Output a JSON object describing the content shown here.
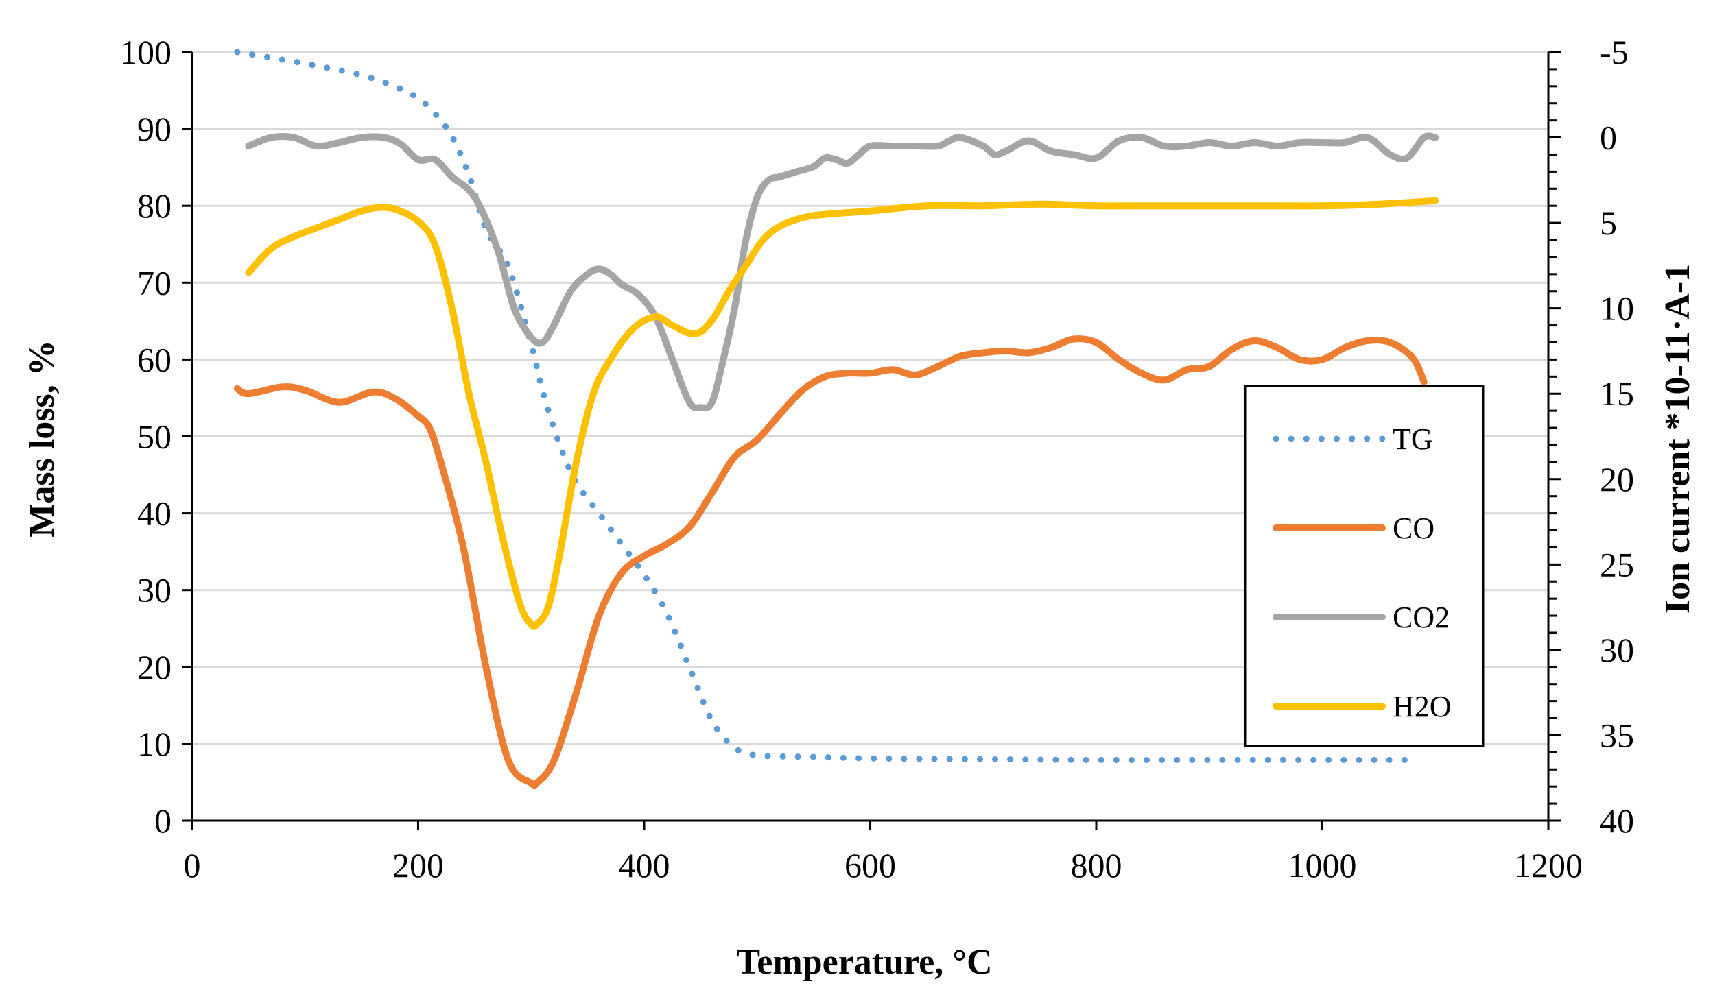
{
  "chart_data": {
    "type": "line",
    "title": "",
    "xlabel": "Temperature, °C",
    "ylabel": "Mass loss, %",
    "y2label": "Ion current *10-11·A-1",
    "xlim": [
      0,
      1200
    ],
    "ylim": [
      0,
      100
    ],
    "y2lim": [
      40,
      -5
    ],
    "y2_reversed": true,
    "grid": true,
    "legend_position": "right",
    "x_ticks": [
      "0",
      "200",
      "400",
      "600",
      "800",
      "1000",
      "1200"
    ],
    "y_ticks": [
      "0",
      "10",
      "20",
      "30",
      "40",
      "50",
      "60",
      "70",
      "80",
      "90",
      "100"
    ],
    "y2_ticks": [
      "-5",
      "0",
      "5",
      "10",
      "15",
      "20",
      "25",
      "30",
      "35",
      "40"
    ],
    "colors": {
      "TG": "#5B9BD5",
      "CO": "#ED7D31",
      "CO2": "#A5A5A5",
      "H2O": "#FFC000",
      "grid": "#D9D9D9",
      "axis": "#000000"
    },
    "series": [
      {
        "name": "TG",
        "axis": "left",
        "style": "dotted",
        "x": [
          40,
          100,
          150,
          180,
          200,
          215,
          230,
          245,
          260,
          280,
          300,
          310,
          325,
          340,
          360,
          380,
          400,
          420,
          440,
          460,
          480,
          500,
          550,
          600,
          700,
          800,
          900,
          1000,
          1085
        ],
        "y": [
          100,
          98.5,
          97,
          95.5,
          94,
          92,
          89,
          84,
          77,
          72,
          62,
          56,
          49,
          44,
          40,
          36,
          32,
          27,
          20,
          13,
          9.5,
          8.5,
          8.3,
          8.1,
          8.0,
          7.9,
          7.9,
          7.9,
          7.9
        ]
      },
      {
        "name": "CO",
        "axis": "right",
        "style": "solid",
        "x": [
          40,
          50,
          80,
          100,
          130,
          160,
          180,
          200,
          210,
          220,
          240,
          260,
          280,
          300,
          305,
          320,
          340,
          360,
          380,
          400,
          420,
          440,
          460,
          480,
          500,
          520,
          540,
          560,
          580,
          600,
          620,
          640,
          660,
          680,
          700,
          720,
          740,
          760,
          780,
          800,
          820,
          840,
          860,
          880,
          900,
          920,
          940,
          960,
          980,
          1000,
          1020,
          1040,
          1060,
          1080,
          1090
        ],
        "y": [
          14.7,
          15.0,
          14.6,
          14.8,
          15.5,
          14.9,
          15.3,
          16.3,
          17.0,
          19.0,
          24.0,
          31.0,
          36.5,
          37.8,
          37.8,
          36.5,
          32.5,
          28.0,
          25.5,
          24.5,
          23.8,
          22.8,
          20.8,
          18.7,
          17.7,
          16.2,
          14.8,
          14.0,
          13.8,
          13.8,
          13.6,
          13.9,
          13.4,
          12.8,
          12.6,
          12.5,
          12.6,
          12.3,
          11.8,
          12.0,
          13.0,
          13.8,
          14.2,
          13.6,
          13.4,
          12.4,
          11.9,
          12.3,
          13.0,
          13.0,
          12.3,
          11.9,
          12.0,
          12.9,
          14.3
        ]
      },
      {
        "name": "CO2",
        "axis": "right",
        "style": "solid",
        "x": [
          50,
          70,
          90,
          110,
          130,
          150,
          170,
          185,
          200,
          215,
          230,
          250,
          270,
          285,
          300,
          310,
          320,
          335,
          350,
          360,
          370,
          380,
          395,
          410,
          425,
          440,
          450,
          460,
          470,
          480,
          490,
          500,
          510,
          520,
          535,
          550,
          560,
          570,
          580,
          590,
          600,
          620,
          640,
          660,
          670,
          680,
          700,
          710,
          720,
          740,
          760,
          780,
          800,
          820,
          840,
          860,
          880,
          900,
          920,
          940,
          960,
          980,
          1000,
          1020,
          1040,
          1060,
          1075,
          1090,
          1100
        ],
        "y": [
          0.5,
          0.0,
          0.0,
          0.5,
          0.3,
          0.0,
          0.0,
          0.4,
          1.3,
          1.3,
          2.3,
          3.5,
          6.5,
          10.0,
          11.7,
          12.0,
          11.0,
          9.0,
          8.0,
          7.7,
          8.0,
          8.6,
          9.2,
          10.5,
          13.0,
          15.5,
          15.8,
          15.5,
          13.0,
          10.0,
          6.0,
          3.5,
          2.5,
          2.3,
          2.0,
          1.7,
          1.2,
          1.3,
          1.5,
          1.0,
          0.5,
          0.5,
          0.5,
          0.5,
          0.2,
          0.0,
          0.5,
          1.0,
          0.8,
          0.2,
          0.8,
          1.0,
          1.2,
          0.2,
          0.0,
          0.5,
          0.5,
          0.3,
          0.5,
          0.3,
          0.5,
          0.3,
          0.3,
          0.3,
          0.0,
          1.0,
          1.2,
          0.0,
          0.0
        ]
      },
      {
        "name": "H2O",
        "axis": "right",
        "style": "solid",
        "x": [
          50,
          70,
          90,
          110,
          130,
          150,
          165,
          180,
          200,
          215,
          230,
          245,
          260,
          275,
          290,
          300,
          305,
          315,
          325,
          340,
          355,
          370,
          390,
          410,
          425,
          445,
          460,
          475,
          490,
          505,
          520,
          540,
          560,
          600,
          650,
          700,
          750,
          800,
          850,
          900,
          950,
          1000,
          1050,
          1100
        ],
        "y": [
          7.9,
          6.5,
          5.8,
          5.3,
          4.8,
          4.3,
          4.1,
          4.2,
          4.9,
          6.3,
          10.0,
          15.0,
          19.0,
          23.5,
          27.3,
          28.5,
          28.5,
          27.5,
          24.5,
          19.0,
          15.0,
          13.0,
          11.2,
          10.5,
          11.0,
          11.5,
          10.7,
          9.0,
          7.5,
          6.0,
          5.2,
          4.7,
          4.5,
          4.3,
          4.0,
          4.0,
          3.9,
          4.0,
          4.0,
          4.0,
          4.0,
          4.0,
          3.9,
          3.7
        ]
      }
    ]
  }
}
